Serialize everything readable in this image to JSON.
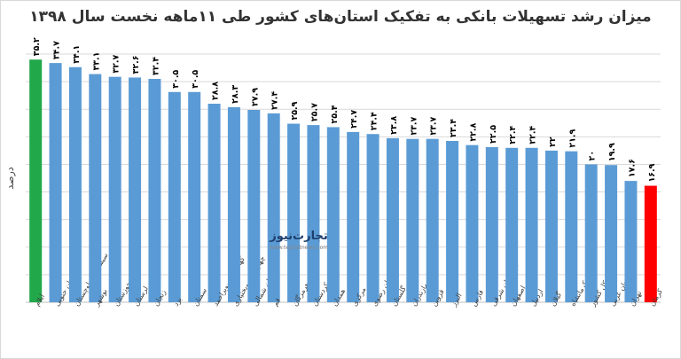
{
  "chart_data": {
    "type": "bar",
    "title": "میزان رشد تسهیلات بانکی به تفکیک استان‌های کشور طی ۱۱ماهه نخست سال ۱۳۹۸",
    "xlabel": "",
    "ylabel": "درصد",
    "ylim": [
      0,
      36
    ],
    "grid": true,
    "legend": "none",
    "categories": [
      "ایلام",
      "خراسان جنوبی",
      "سیستان و بلوچستان",
      "بوشهر",
      "خوزستان",
      "لرستان",
      "زنجان",
      "یزد",
      "سمنان",
      "کهگیلویه وبویراحمد",
      "چهارمحال وبختیاری",
      "خراسان شمالی",
      "قم",
      "هرمزگان",
      "کردستان",
      "همدان",
      "مرکزی",
      "خراسان رضوی",
      "گلستان",
      "مازندران",
      "قزوین",
      "البرز",
      "فارس",
      "آذربایجان شرقی",
      "اصفهان",
      "اردبیل",
      "گیلان",
      "کرمانشاه",
      "کل کشور",
      "آذربایجان غربی",
      "تهران",
      "کرمان"
    ],
    "values": [
      35.2,
      34.7,
      34.1,
      33.1,
      32.7,
      32.6,
      32.4,
      30.5,
      30.5,
      28.8,
      28.3,
      27.9,
      27.4,
      25.9,
      25.7,
      25.4,
      24.7,
      24.4,
      23.8,
      23.7,
      23.7,
      23.4,
      22.8,
      22.5,
      22.4,
      22.4,
      22.0,
      21.9,
      20.0,
      19.9,
      17.6,
      16.9
    ],
    "value_labels": [
      "۳۵.۲",
      "۳۴.۷",
      "۳۴.۱",
      "۳۳.۱",
      "۳۲.۷",
      "۳۲.۶",
      "۳۲.۴",
      "۳۰.۵",
      "۳۰.۵",
      "۲۸.۸",
      "۲۸.۳",
      "۲۷.۹",
      "۲۷.۴",
      "۲۵.۹",
      "۲۵.۷",
      "۲۵.۴",
      "۲۴.۷",
      "۲۴.۴",
      "۲۳.۸",
      "۲۳.۷",
      "۲۳.۷",
      "۲۳.۴",
      "۲۲.۸",
      "۲۲.۵",
      "۲۲.۴",
      "۲۲.۴",
      "۲۲",
      "۲۱.۹",
      "۲۰",
      "۱۹.۹",
      "۱۷.۶",
      "۱۶.۹"
    ],
    "colors": {
      "default": "#5b9bd5",
      "highest": "#21a84a",
      "lowest": "#ff0000",
      "grid": "#d9d9d9",
      "label": "#000000"
    },
    "highlight": {
      "highest_index": 0,
      "lowest_index": 31
    }
  },
  "watermark": {
    "name": "تجارت‌نیوز",
    "site": "www.tejaratnews.com"
  }
}
